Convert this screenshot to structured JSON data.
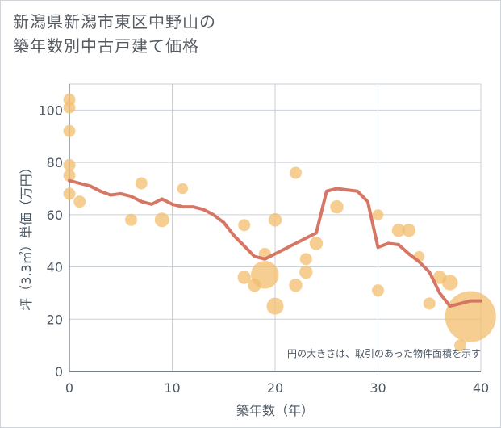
{
  "title_lines": [
    "新潟県新潟市東区中野山の",
    "築年数別中古戸建て価格"
  ],
  "chart_data": {
    "type": "scatter+line",
    "title": "新潟県新潟市東区中野山の築年数別中古戸建て価格",
    "xlabel": "築年数（年）",
    "ylabel": "坪（3.3㎡）単価（万円）",
    "xlim": [
      0,
      40
    ],
    "ylim": [
      0,
      110
    ],
    "xticks": [
      0,
      10,
      20,
      30,
      40
    ],
    "yticks": [
      0,
      20,
      40,
      60,
      80,
      100
    ],
    "grid": true,
    "annotation": "円の大きさは、取引のあった物件面積を示す",
    "colors": {
      "scatter": "#f3bd6e",
      "line": "#d4705e",
      "grid": "#c8d0d8",
      "axis": "#4a5662"
    },
    "scatter": [
      {
        "x": 0,
        "y": 104,
        "size": 1
      },
      {
        "x": 0,
        "y": 101,
        "size": 1
      },
      {
        "x": 0,
        "y": 92,
        "size": 1
      },
      {
        "x": 0,
        "y": 79,
        "size": 1
      },
      {
        "x": 0,
        "y": 75,
        "size": 1
      },
      {
        "x": 0,
        "y": 68,
        "size": 1
      },
      {
        "x": 1,
        "y": 65,
        "size": 1
      },
      {
        "x": 6,
        "y": 58,
        "size": 1
      },
      {
        "x": 7,
        "y": 72,
        "size": 1
      },
      {
        "x": 9,
        "y": 58,
        "size": 1.2
      },
      {
        "x": 11,
        "y": 70,
        "size": 0.9
      },
      {
        "x": 17,
        "y": 56,
        "size": 1
      },
      {
        "x": 17,
        "y": 36,
        "size": 1.1
      },
      {
        "x": 18,
        "y": 33,
        "size": 1.1
      },
      {
        "x": 19,
        "y": 45,
        "size": 1
      },
      {
        "x": 19,
        "y": 37,
        "size": 2.3
      },
      {
        "x": 20,
        "y": 58,
        "size": 1.1
      },
      {
        "x": 20,
        "y": 25,
        "size": 1.4
      },
      {
        "x": 22,
        "y": 76,
        "size": 1
      },
      {
        "x": 22,
        "y": 33,
        "size": 1.1
      },
      {
        "x": 23,
        "y": 43,
        "size": 1
      },
      {
        "x": 23,
        "y": 38,
        "size": 1.1
      },
      {
        "x": 24,
        "y": 49,
        "size": 1.1
      },
      {
        "x": 26,
        "y": 63,
        "size": 1.1
      },
      {
        "x": 30,
        "y": 60,
        "size": 0.9
      },
      {
        "x": 30,
        "y": 31,
        "size": 1
      },
      {
        "x": 32,
        "y": 54,
        "size": 1.1
      },
      {
        "x": 33,
        "y": 54,
        "size": 1.1
      },
      {
        "x": 34,
        "y": 44,
        "size": 0.9
      },
      {
        "x": 35,
        "y": 26,
        "size": 1
      },
      {
        "x": 36,
        "y": 36,
        "size": 1.1
      },
      {
        "x": 37,
        "y": 34,
        "size": 1.3
      },
      {
        "x": 38,
        "y": 10,
        "size": 1
      },
      {
        "x": 39,
        "y": 21,
        "size": 4.2
      }
    ],
    "line": {
      "x": [
        0,
        1,
        2,
        3,
        4,
        5,
        6,
        7,
        8,
        9,
        10,
        11,
        12,
        13,
        14,
        15,
        16,
        17,
        18,
        19,
        20,
        21,
        22,
        23,
        24,
        25,
        26,
        27,
        28,
        29,
        30,
        31,
        32,
        33,
        34,
        35,
        36,
        37,
        38,
        39,
        40
      ],
      "y": [
        73,
        72,
        71,
        69,
        67.5,
        68,
        67,
        65,
        64,
        66,
        64,
        63,
        63,
        62,
        60,
        57,
        52,
        48,
        44,
        43,
        45,
        47,
        49,
        51,
        53,
        69,
        70,
        69.5,
        69,
        65,
        47.5,
        49,
        48.5,
        45,
        42,
        38,
        30,
        25,
        26,
        27,
        27
      ]
    }
  }
}
